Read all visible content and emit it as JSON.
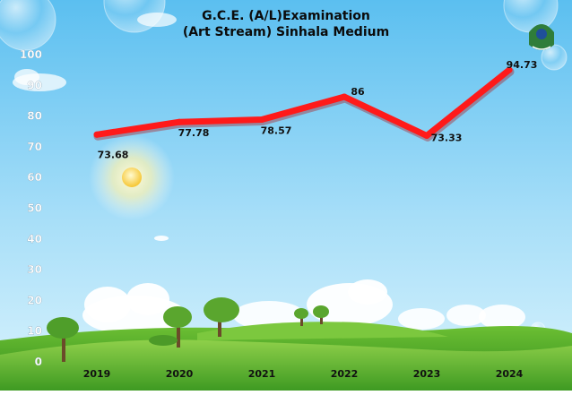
{
  "chart_data": {
    "type": "line",
    "title": [
      "G.C.E. (A/L)Examination",
      "(Art Stream) Sinhala Medium"
    ],
    "categories": [
      "2019",
      "2020",
      "2021",
      "2022",
      "2023",
      "2024"
    ],
    "series": [
      {
        "values": [
          73.68,
          77.78,
          78.57,
          86,
          73.33,
          94.73
        ]
      }
    ],
    "data_labels": [
      "73.68",
      "77.78",
      "78.57",
      "86",
      "73.33",
      "94.73"
    ],
    "yticks": [
      0,
      10,
      20,
      30,
      40,
      50,
      60,
      70,
      80,
      90,
      100
    ],
    "ylim": [
      0,
      100
    ],
    "xlabel": "",
    "ylabel": "",
    "grid": false,
    "legend": "none",
    "line_color": "#ff1a1a",
    "background": "sky-with-clouds-sun-and-grass-hills"
  },
  "colors": {
    "line": "#ff1a1a",
    "sky_top": "#6cc6f2",
    "sky_bottom": "#c9ecfb",
    "grass": "#4fa82a",
    "tick_text": "#ffffff",
    "category_text": "#111111"
  },
  "logo": {
    "icon": "institution-emblem-icon"
  }
}
